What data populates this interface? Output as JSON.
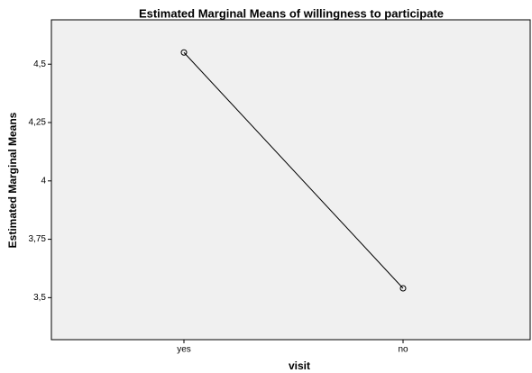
{
  "chart_data": {
    "type": "line",
    "title": "Estimated Marginal Means of willingness to participate",
    "x_label": "visit",
    "y_label": "Estimated Marginal Means",
    "categories": [
      "yes",
      "no"
    ],
    "series": [
      {
        "color": "#000000",
        "values": [
          4.55,
          3.54
        ]
      }
    ],
    "ylim": [
      3.32,
      4.69
    ],
    "yticks": [
      {
        "value": 3.5,
        "label": "3,5"
      },
      {
        "value": 3.75,
        "label": "3,75"
      },
      4,
      {
        "value": 4.25,
        "label": "4,25"
      },
      {
        "value": 4.5,
        "label": "4,5"
      }
    ],
    "grid": false
  }
}
